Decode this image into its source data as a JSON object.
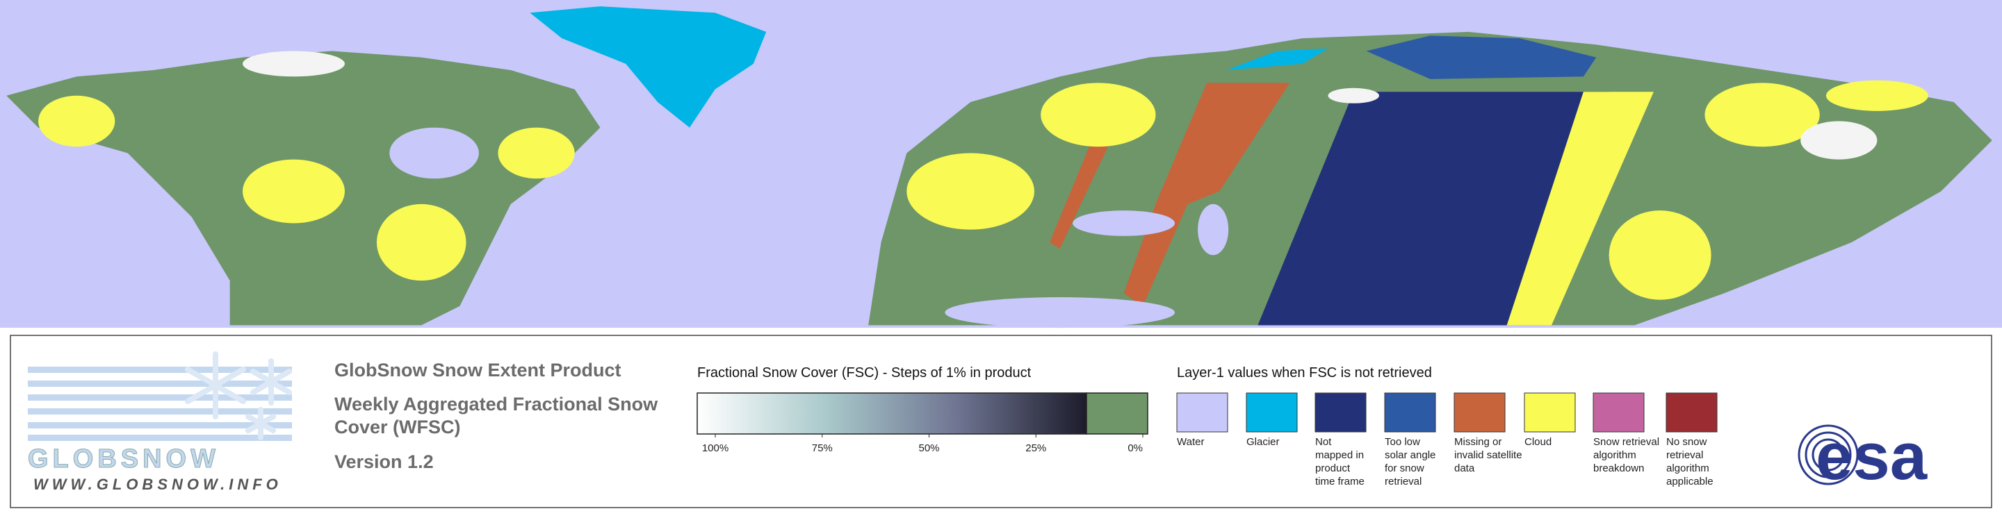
{
  "logo": {
    "name": "GLOBSNOW",
    "url": "WWW.GLOBSNOW.INFO"
  },
  "product": {
    "lines": [
      "GlobSnow Snow Extent Product",
      "Weekly Aggregated Fractional Snow",
      "Cover (WFSC)",
      "Version 1.2"
    ]
  },
  "colorbar": {
    "title": "Fractional Snow Cover (FSC) - Steps of 1% in product",
    "gradient": [
      "#ffffff",
      "#a9c9cb",
      "#6f7592",
      "#1c1c2b"
    ],
    "zero_color": "#6e9669",
    "ticks": [
      {
        "value": 100,
        "label": "100%"
      },
      {
        "value": 75,
        "label": "75%"
      },
      {
        "value": 50,
        "label": "50%"
      },
      {
        "value": 25,
        "label": "25%"
      },
      {
        "value": 0,
        "label": "0%"
      }
    ]
  },
  "legend": {
    "title": "Layer-1 values when FSC is not retrieved",
    "items": [
      {
        "label": [
          "Water"
        ],
        "color": "#c8c8fa"
      },
      {
        "label": [
          "Glacier"
        ],
        "color": "#00b4e6"
      },
      {
        "label": [
          "Not",
          "mapped in",
          "product",
          "time frame"
        ],
        "color": "#233278"
      },
      {
        "label": [
          "Too low",
          "solar angle",
          "for snow",
          "retrieval"
        ],
        "color": "#2d5aa5"
      },
      {
        "label": [
          "Missing or",
          "invalid satellite",
          "data"
        ],
        "color": "#c8643c"
      },
      {
        "label": [
          "Cloud"
        ],
        "color": "#fafa55"
      },
      {
        "label": [
          "Snow retrieval",
          "algorithm",
          "breakdown"
        ],
        "color": "#c364a0"
      },
      {
        "label": [
          "No snow",
          "retrieval",
          "algorithm",
          "applicable"
        ],
        "color": "#9b2d32"
      }
    ]
  },
  "agency": {
    "name": "esa"
  }
}
